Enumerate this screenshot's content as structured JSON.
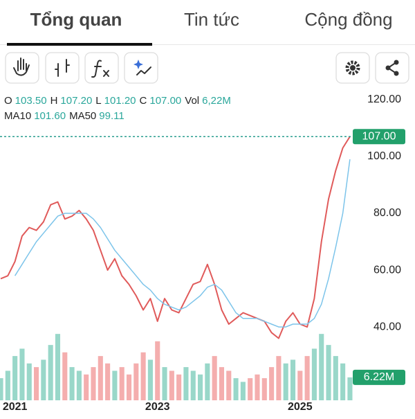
{
  "tabs": [
    "Tổng quan",
    "Tin tức",
    "Cộng đồng"
  ],
  "ohlc": {
    "labels": [
      "O",
      "H",
      "L",
      "C",
      "Vol"
    ],
    "values": [
      "103.50",
      "107.20",
      "101.20",
      "107.00",
      "6,22M"
    ]
  },
  "ma": {
    "labels": [
      "MA10",
      "MA50"
    ],
    "values": [
      "101.60",
      "99.11"
    ]
  },
  "chart_data": {
    "type": "line",
    "x": [
      2020.8,
      2020.9,
      2021.0,
      2021.1,
      2021.2,
      2021.3,
      2021.4,
      2021.5,
      2021.6,
      2021.7,
      2021.8,
      2021.9,
      2022.0,
      2022.1,
      2022.2,
      2022.3,
      2022.4,
      2022.5,
      2022.6,
      2022.7,
      2022.8,
      2022.9,
      2023.0,
      2023.1,
      2023.2,
      2023.3,
      2023.4,
      2023.5,
      2023.6,
      2023.7,
      2023.8,
      2023.9,
      2024.0,
      2024.1,
      2024.2,
      2024.3,
      2024.4,
      2024.5,
      2024.6,
      2024.7,
      2024.8,
      2024.9,
      2025.0,
      2025.1,
      2025.2,
      2025.3,
      2025.4,
      2025.5,
      2025.6,
      2025.7
    ],
    "series": [
      {
        "color": "#e05a5a",
        "values": [
          57,
          58,
          63,
          72,
          75,
          74,
          77,
          83,
          84,
          78,
          79,
          81,
          78,
          74,
          67,
          60,
          64,
          58,
          55,
          51,
          46,
          50,
          42,
          50,
          46,
          45,
          50,
          55,
          56,
          62,
          55,
          46,
          41,
          43,
          45,
          44,
          43,
          42,
          38,
          36,
          42,
          45,
          41,
          40,
          50,
          70,
          85,
          95,
          103,
          107
        ]
      },
      {
        "color": "#7cc4ea",
        "values": [
          null,
          null,
          58,
          62,
          66,
          70,
          73,
          76,
          79,
          80,
          80,
          80,
          80,
          78,
          75,
          71,
          67,
          64,
          61,
          58,
          55,
          53,
          50,
          48,
          47,
          46,
          47,
          49,
          51,
          54,
          55,
          53,
          49,
          45,
          43,
          43,
          43,
          42,
          41,
          40,
          40,
          41,
          41,
          41,
          43,
          48,
          57,
          68,
          80,
          99
        ]
      }
    ],
    "volume": {
      "up_color": "#7fcdbb",
      "down_color": "#f19a9a",
      "values": [
        6,
        8,
        12,
        14,
        10,
        9,
        11,
        15,
        18,
        13,
        9,
        8,
        7,
        9,
        12,
        10,
        8,
        9,
        7,
        10,
        13,
        11,
        16,
        9,
        8,
        7,
        9,
        8,
        7,
        10,
        12,
        9,
        8,
        6,
        5,
        6,
        7,
        6,
        9,
        12,
        10,
        11,
        8,
        12,
        14,
        18,
        15,
        12,
        10,
        6.22
      ]
    },
    "xlim": [
      2020.79,
      2025.72
    ],
    "xticks": [
      2021,
      2023,
      2025
    ],
    "ylim": [
      33.2,
      124.6
    ],
    "yticks": [
      {
        "value": 40,
        "label": "40.00"
      },
      {
        "value": 60,
        "label": "60.00"
      },
      {
        "value": 80,
        "label": "80.00"
      },
      {
        "value": 100,
        "label": "100.00"
      },
      {
        "value": 120,
        "label": "120.00"
      }
    ],
    "vlim": [
      0,
      40
    ],
    "last_price": {
      "value": 107,
      "label": "107.00"
    },
    "last_volume": {
      "value": 6.22,
      "label": "6.22M"
    }
  }
}
